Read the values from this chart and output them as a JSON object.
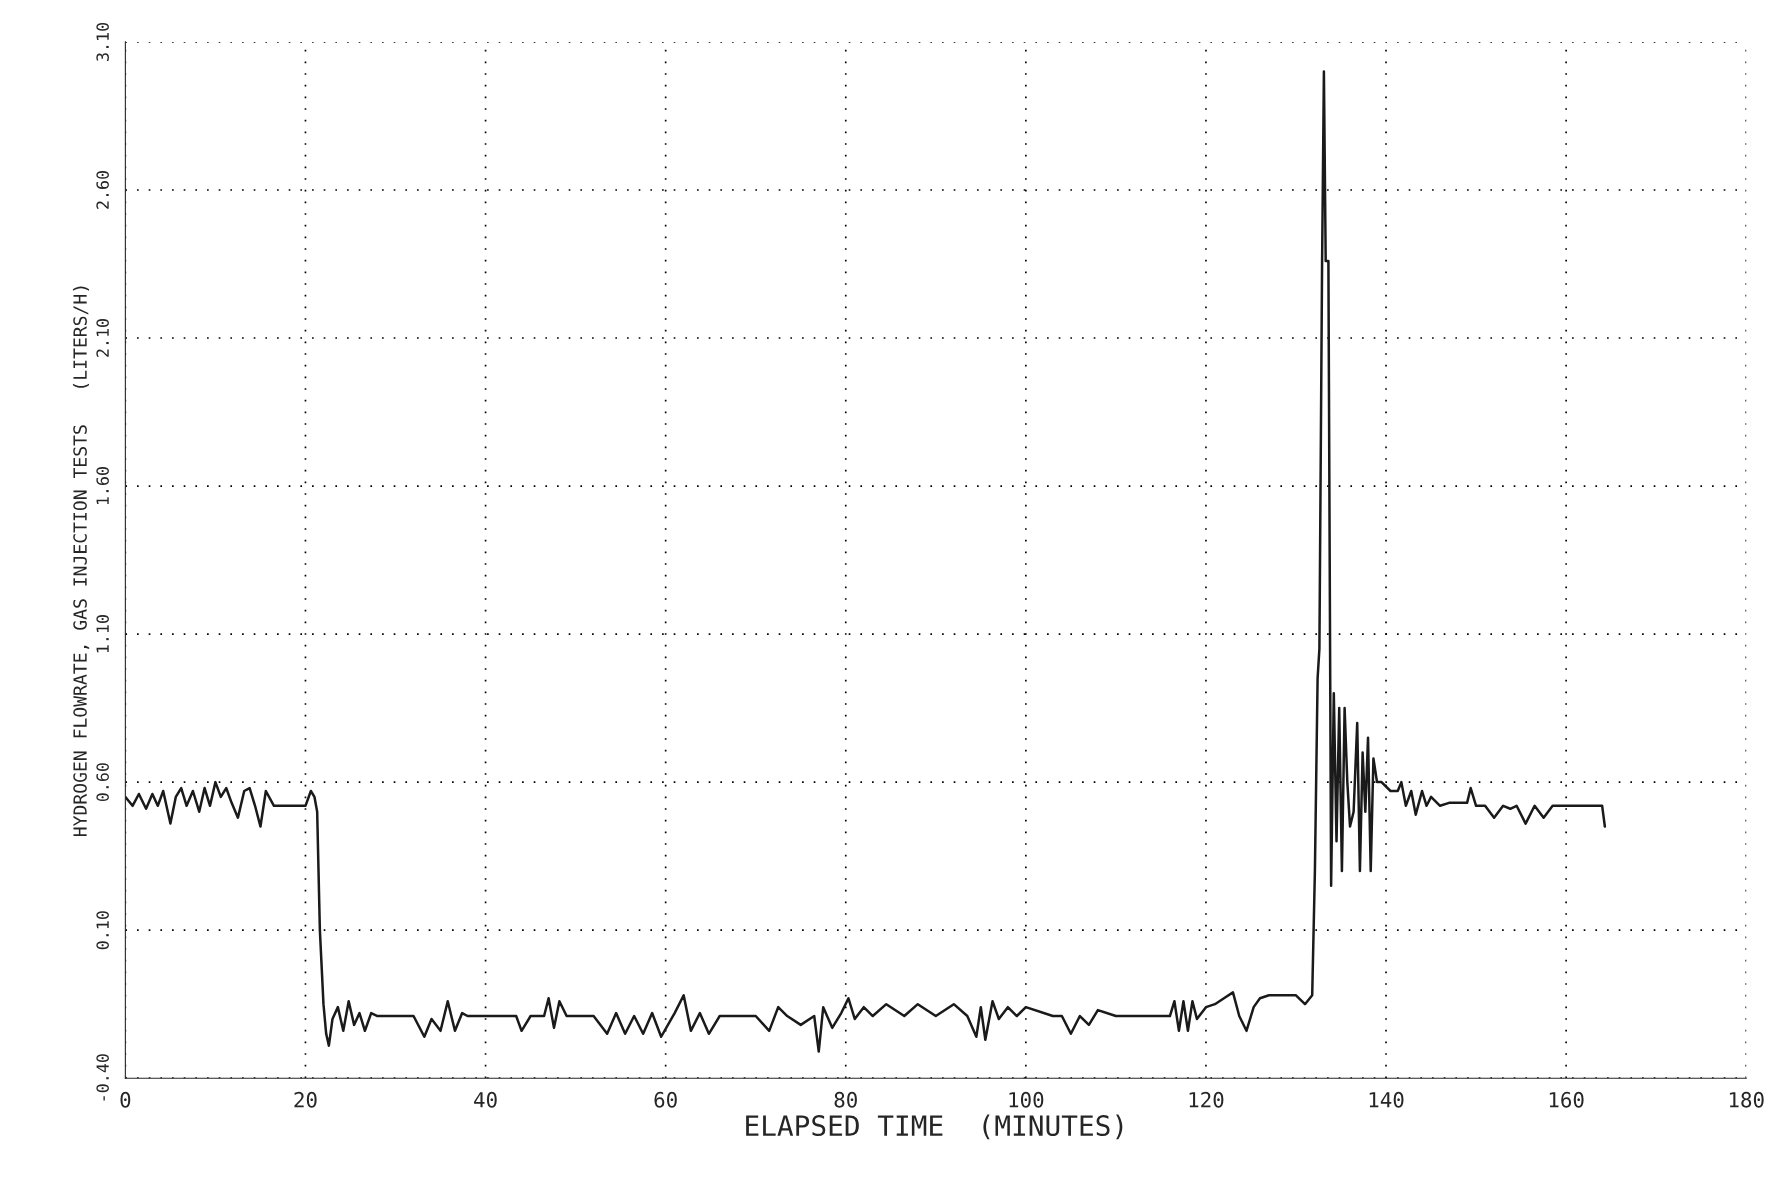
{
  "chart_data": {
    "type": "line",
    "xlabel": "ELAPSED TIME  (MINUTES)",
    "ylabel": "HYDROGEN FLOWRATE, GAS INJECTION TESTS   (LITERS/H)",
    "x": [
      0,
      0.8,
      1.5,
      2.3,
      3,
      3.6,
      4.2,
      5,
      5.6,
      6.2,
      6.8,
      7.5,
      8.2,
      8.8,
      9.4,
      10,
      10.6,
      11.2,
      11.8,
      12.5,
      13.2,
      13.8,
      14.4,
      15,
      15.6,
      16.5,
      20,
      20.6,
      21,
      21.3,
      21.6,
      22,
      22.3,
      22.6,
      23,
      23.6,
      24.2,
      24.8,
      25.4,
      26,
      26.6,
      27.3,
      28,
      32,
      33.2,
      34,
      35,
      35.8,
      36.6,
      37.4,
      38,
      43.4,
      44,
      45,
      46.5,
      47,
      47.6,
      48.2,
      49,
      52,
      53.5,
      54.5,
      55.5,
      56.5,
      57.5,
      58.5,
      59.5,
      61,
      62,
      62.8,
      63.8,
      64.8,
      66,
      70,
      71.5,
      72.5,
      73.5,
      75,
      76.5,
      77,
      77.5,
      78.5,
      79.5,
      80.3,
      81,
      82,
      83,
      84.5,
      86.5,
      88,
      90,
      92,
      93.5,
      94.5,
      95,
      95.5,
      96.3,
      97,
      98,
      99,
      100,
      103,
      104,
      105,
      106,
      107,
      108,
      110,
      116,
      116.5,
      117,
      117.5,
      118,
      118.5,
      119,
      120,
      121,
      122,
      123,
      123.7,
      124.5,
      125.3,
      126,
      127,
      130,
      131,
      131.8,
      132.1,
      132.4,
      132.6,
      132.9,
      133.1,
      133.3,
      133.6,
      133.9,
      134.2,
      134.5,
      134.8,
      135.1,
      135.4,
      135.7,
      136,
      136.4,
      136.8,
      137.1,
      137.4,
      137.7,
      138,
      138.3,
      138.6,
      139,
      139.5,
      140.5,
      141.3,
      141.7,
      142.2,
      142.8,
      143.3,
      144,
      144.5,
      145,
      146,
      147,
      148,
      149,
      149.4,
      150,
      151,
      152,
      153,
      153.8,
      154.5,
      155.5,
      156.5,
      157.5,
      158.5,
      159.5,
      164,
      164.3
    ],
    "values": [
      0.55,
      0.52,
      0.56,
      0.51,
      0.56,
      0.52,
      0.57,
      0.46,
      0.55,
      0.58,
      0.52,
      0.57,
      0.5,
      0.58,
      0.52,
      0.6,
      0.55,
      0.58,
      0.53,
      0.48,
      0.57,
      0.58,
      0.52,
      0.45,
      0.57,
      0.52,
      0.52,
      0.57,
      0.55,
      0.5,
      0.1,
      -0.15,
      -0.25,
      -0.29,
      -0.2,
      -0.16,
      -0.24,
      -0.14,
      -0.22,
      -0.18,
      -0.24,
      -0.18,
      -0.19,
      -0.19,
      -0.26,
      -0.2,
      -0.24,
      -0.14,
      -0.24,
      -0.18,
      -0.19,
      -0.19,
      -0.24,
      -0.19,
      -0.19,
      -0.13,
      -0.23,
      -0.14,
      -0.19,
      -0.19,
      -0.25,
      -0.18,
      -0.25,
      -0.19,
      -0.25,
      -0.18,
      -0.26,
      -0.18,
      -0.12,
      -0.24,
      -0.18,
      -0.25,
      -0.19,
      -0.19,
      -0.24,
      -0.16,
      -0.19,
      -0.22,
      -0.19,
      -0.31,
      -0.16,
      -0.23,
      -0.18,
      -0.13,
      -0.2,
      -0.16,
      -0.19,
      -0.15,
      -0.19,
      -0.15,
      -0.19,
      -0.15,
      -0.19,
      -0.26,
      -0.16,
      -0.27,
      -0.14,
      -0.2,
      -0.16,
      -0.19,
      -0.16,
      -0.19,
      -0.19,
      -0.25,
      -0.19,
      -0.22,
      -0.17,
      -0.19,
      -0.19,
      -0.14,
      -0.24,
      -0.14,
      -0.24,
      -0.14,
      -0.2,
      -0.16,
      -0.15,
      -0.13,
      -0.11,
      -0.19,
      -0.24,
      -0.16,
      -0.13,
      -0.12,
      -0.12,
      -0.15,
      -0.12,
      0.3,
      0.95,
      1.05,
      2.36,
      3.0,
      2.36,
      2.36,
      0.25,
      0.9,
      0.4,
      0.85,
      0.3,
      0.85,
      0.6,
      0.45,
      0.5,
      0.8,
      0.3,
      0.7,
      0.5,
      0.75,
      0.3,
      0.68,
      0.6,
      0.6,
      0.57,
      0.57,
      0.6,
      0.52,
      0.57,
      0.49,
      0.57,
      0.52,
      0.55,
      0.52,
      0.53,
      0.53,
      0.53,
      0.58,
      0.52,
      0.52,
      0.48,
      0.52,
      0.51,
      0.52,
      0.46,
      0.52,
      0.48,
      0.52,
      0.52,
      0.52,
      0.45
    ],
    "color": "#1a1a1a",
    "xlim": [
      0,
      180
    ],
    "xticks": [
      0,
      20,
      40,
      60,
      80,
      100,
      120,
      140,
      160,
      180
    ],
    "ylim": [
      -0.4,
      3.1
    ],
    "yticks": [
      {
        "value": -0.4,
        "label": "-0.40"
      },
      {
        "value": 0.1,
        "label": "0.10"
      },
      {
        "value": 0.6,
        "label": "0.60"
      },
      {
        "value": 1.1,
        "label": "1.10"
      },
      {
        "value": 1.6,
        "label": "1.60"
      },
      {
        "value": 2.1,
        "label": "2.10"
      },
      {
        "value": 2.6,
        "label": "2.60"
      },
      {
        "value": 3.1,
        "label": "3.10"
      }
    ],
    "grid": true,
    "marker": "none",
    "line_style": "solid"
  }
}
